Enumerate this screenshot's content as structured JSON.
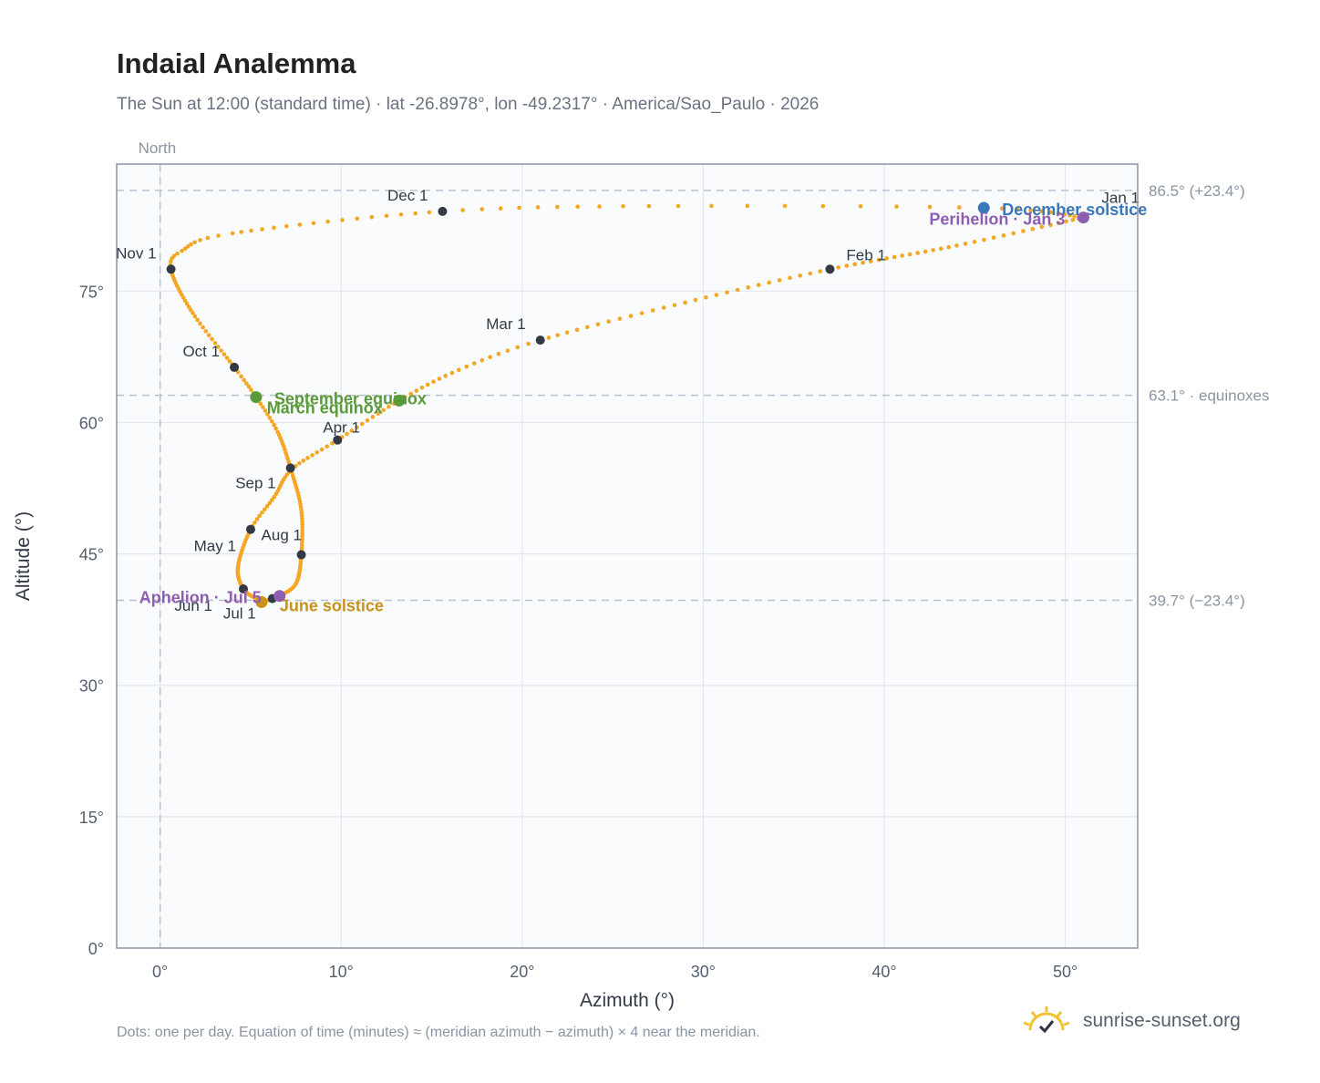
{
  "header": {
    "title": "Indaial Analemma",
    "subtitle": "The Sun at 12:00 (standard time) · lat -26.8978°, lon -49.2317° · America/Sao_Paulo · 2026"
  },
  "footer": {
    "note": "Dots: one per day. Equation of time (minutes) ≈ (meridian azimuth − azimuth) × 4 near the meridian.",
    "brand": "sunrise-sunset.org"
  },
  "colors": {
    "analemma": "#f5a623",
    "month_marker": "#333a45",
    "december_solstice": "#3a78b8",
    "june_solstice": "#c8921a",
    "equinox": "#5a9a3a",
    "apsis": "#8e5fb0",
    "plot_bg": "#f9fbfd",
    "grid": "#e3e8ee",
    "frame": "#8a94a3",
    "ref_line": "#b8c2ce"
  },
  "chart_data": {
    "type": "scatter",
    "title": "Indaial Analemma",
    "xlabel": "Azimuth (°)",
    "ylabel": "Altitude (°)",
    "xlim": [
      -2.4,
      54
    ],
    "ylim": [
      0,
      89.5
    ],
    "x_ticks": [
      0,
      10,
      20,
      30,
      40,
      50
    ],
    "x_tick_labels": [
      "0°",
      "10°",
      "20°",
      "30°",
      "40°",
      "50°"
    ],
    "y_ticks": [
      0,
      15,
      30,
      45,
      60,
      75
    ],
    "y_tick_labels": [
      "0°",
      "15°",
      "30°",
      "45°",
      "60°",
      "75°"
    ],
    "grid": true,
    "vertical_reference": {
      "x": 0,
      "label": "North"
    },
    "reference_lines": [
      {
        "y": 86.5,
        "label": "86.5° (+23.4°)"
      },
      {
        "y": 63.1,
        "label": "63.1° · equinoxes"
      },
      {
        "y": 39.7,
        "label": "39.7° (−23.4°)"
      }
    ],
    "analemma_keypoints": [
      {
        "day": 0,
        "x": 51.0,
        "y": 83.4
      },
      {
        "day": 15,
        "x": 44.0,
        "y": 80.2
      },
      {
        "day": 31,
        "x": 37.0,
        "y": 77.5
      },
      {
        "day": 45,
        "x": 29.0,
        "y": 73.7
      },
      {
        "day": 59,
        "x": 21.0,
        "y": 69.4
      },
      {
        "day": 68,
        "x": 16.5,
        "y": 66.0
      },
      {
        "day": 78,
        "x": 13.2,
        "y": 62.5
      },
      {
        "day": 90,
        "x": 9.8,
        "y": 58.0
      },
      {
        "day": 100,
        "x": 7.3,
        "y": 54.7
      },
      {
        "day": 110,
        "x": 6.3,
        "y": 51.5
      },
      {
        "day": 120,
        "x": 5.0,
        "y": 47.8
      },
      {
        "day": 135,
        "x": 4.3,
        "y": 43.5
      },
      {
        "day": 151,
        "x": 4.6,
        "y": 41.0
      },
      {
        "day": 165,
        "x": 5.3,
        "y": 39.9
      },
      {
        "day": 172,
        "x": 5.6,
        "y": 39.5
      },
      {
        "day": 181,
        "x": 6.2,
        "y": 39.9
      },
      {
        "day": 186,
        "x": 6.6,
        "y": 40.2
      },
      {
        "day": 196,
        "x": 7.5,
        "y": 41.6
      },
      {
        "day": 212,
        "x": 7.8,
        "y": 44.9
      },
      {
        "day": 228,
        "x": 7.8,
        "y": 50.0
      },
      {
        "day": 243,
        "x": 7.2,
        "y": 54.8
      },
      {
        "day": 255,
        "x": 6.5,
        "y": 58.9
      },
      {
        "day": 265,
        "x": 5.3,
        "y": 62.9
      },
      {
        "day": 273,
        "x": 4.1,
        "y": 66.3
      },
      {
        "day": 288,
        "x": 1.8,
        "y": 72.5
      },
      {
        "day": 304,
        "x": 0.6,
        "y": 77.5
      },
      {
        "day": 310,
        "x": 1.2,
        "y": 79.6
      },
      {
        "day": 318,
        "x": 4.0,
        "y": 81.6
      },
      {
        "day": 334,
        "x": 15.6,
        "y": 84.1
      },
      {
        "day": 344,
        "x": 27.0,
        "y": 84.7
      },
      {
        "day": 354,
        "x": 45.5,
        "y": 84.5
      },
      {
        "day": 365,
        "x": 51.0,
        "y": 83.4
      }
    ],
    "month_markers": [
      {
        "label": "Jan 1",
        "x": 51.0,
        "y": 83.4
      },
      {
        "label": "Feb 1",
        "x": 37.0,
        "y": 77.5
      },
      {
        "label": "Mar 1",
        "x": 21.0,
        "y": 69.4
      },
      {
        "label": "Apr 1",
        "x": 9.8,
        "y": 58.0
      },
      {
        "label": "May 1",
        "x": 5.0,
        "y": 47.8
      },
      {
        "label": "Jun 1",
        "x": 4.6,
        "y": 41.0
      },
      {
        "label": "Jul 1",
        "x": 6.2,
        "y": 39.9
      },
      {
        "label": "Aug 1",
        "x": 7.8,
        "y": 44.9
      },
      {
        "label": "Sep 1",
        "x": 7.2,
        "y": 54.8
      },
      {
        "label": "Oct 1",
        "x": 4.1,
        "y": 66.3
      },
      {
        "label": "Nov 1",
        "x": 0.6,
        "y": 77.5
      },
      {
        "label": "Dec 1",
        "x": 15.6,
        "y": 84.1
      }
    ],
    "events": [
      {
        "label": "December solstice",
        "x": 45.5,
        "y": 84.5,
        "color": "#3a78b8"
      },
      {
        "label": "Perihelion · Jan 3",
        "x": 51.0,
        "y": 83.4,
        "color": "#8e5fb0"
      },
      {
        "label": "September equinox",
        "x": 5.3,
        "y": 62.9,
        "color": "#5a9a3a"
      },
      {
        "label": "March equinox",
        "x": 13.2,
        "y": 62.5,
        "color": "#5a9a3a"
      },
      {
        "label": "June solstice",
        "x": 5.6,
        "y": 39.5,
        "color": "#c8921a"
      },
      {
        "label": "Aphelion · Jul 5",
        "x": 6.6,
        "y": 40.2,
        "color": "#8e5fb0"
      }
    ]
  }
}
